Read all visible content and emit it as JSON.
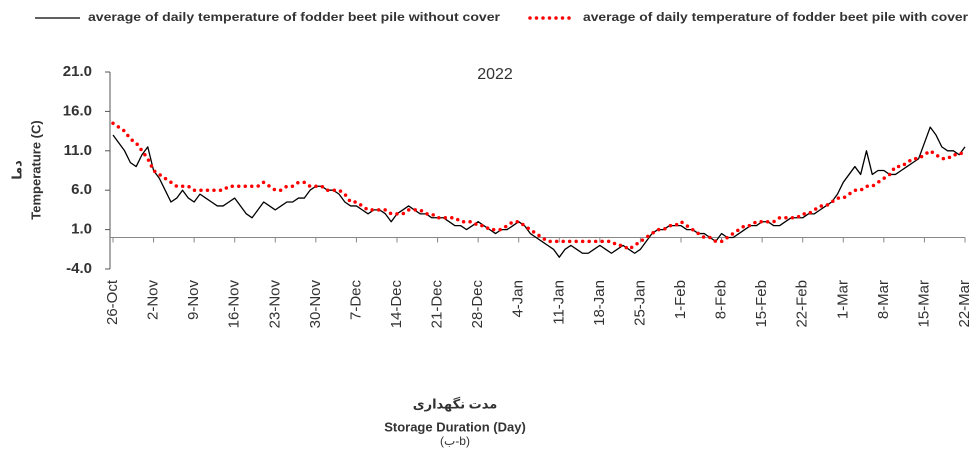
{
  "chart_data": {
    "type": "line",
    "title": "2022",
    "y_label": "Temperature (C)",
    "y_label_fa": "دما",
    "x_label_fa": "مدت نگهداری",
    "x_label": "Storage Duration (Day)",
    "caption": "(ب-b)",
    "legend": "top",
    "categories": [
      "26-Oct",
      null,
      null,
      null,
      null,
      null,
      null,
      "2-Nov",
      null,
      null,
      null,
      null,
      null,
      null,
      "9-Nov",
      null,
      null,
      null,
      null,
      null,
      null,
      "16-Nov",
      null,
      null,
      null,
      null,
      null,
      null,
      "23-Nov",
      null,
      null,
      null,
      null,
      null,
      null,
      "30-Nov",
      null,
      null,
      null,
      null,
      null,
      null,
      "7-Dec",
      null,
      null,
      null,
      null,
      null,
      null,
      "14-Dec",
      null,
      null,
      null,
      null,
      null,
      null,
      "21-Dec",
      null,
      null,
      null,
      null,
      null,
      null,
      "28-Dec",
      null,
      null,
      null,
      null,
      null,
      null,
      "4-Jan",
      null,
      null,
      null,
      null,
      null,
      null,
      "11-Jan",
      null,
      null,
      null,
      null,
      null,
      null,
      "18-Jan",
      null,
      null,
      null,
      null,
      null,
      null,
      "25-Jan",
      null,
      null,
      null,
      null,
      null,
      null,
      "1-Feb",
      null,
      null,
      null,
      null,
      null,
      null,
      "8-Feb",
      null,
      null,
      null,
      null,
      null,
      null,
      "15-Feb",
      null,
      null,
      null,
      null,
      null,
      null,
      "22-Feb",
      null,
      null,
      null,
      null,
      null,
      null,
      "1-Mar",
      null,
      null,
      null,
      null,
      null,
      null,
      "8-Mar",
      null,
      null,
      null,
      null,
      null,
      null,
      "15-Mar",
      null,
      null,
      null,
      null,
      null,
      null,
      "22-Mar"
    ],
    "series": [
      {
        "name": "average of daily temperature of fodder beet pile without cover",
        "color": "#000000",
        "style": "solid",
        "values": [
          13,
          12,
          11,
          9.5,
          9,
          10.5,
          11.5,
          8.5,
          7.5,
          6,
          4.5,
          5,
          6,
          5,
          4.5,
          5.5,
          5,
          4.5,
          4,
          4,
          4.5,
          5,
          4,
          3,
          2.5,
          3.5,
          4.5,
          4,
          3.5,
          4,
          4.5,
          4.5,
          5,
          5,
          6,
          6.5,
          6.5,
          6,
          6,
          5.5,
          4.5,
          4,
          4,
          3.5,
          3,
          3.5,
          3.5,
          3,
          2,
          3,
          3.5,
          4,
          3.5,
          3,
          3,
          2.5,
          2.5,
          2.5,
          2,
          1.5,
          1.5,
          1,
          1.5,
          2,
          1.5,
          1,
          0.5,
          1,
          1,
          1.5,
          2,
          1.5,
          0.5,
          0,
          -0.5,
          -1,
          -1.5,
          -2.5,
          -1.5,
          -1,
          -1.5,
          -2,
          -2,
          -1.5,
          -1,
          -1.5,
          -2,
          -1.5,
          -1,
          -1.5,
          -2,
          -1.5,
          -0.5,
          0.5,
          1,
          1,
          1.5,
          1.5,
          1.5,
          1,
          1,
          0.5,
          0.5,
          0,
          -0.5,
          0.5,
          0,
          0,
          0.5,
          1,
          1.5,
          1.5,
          2,
          2,
          1.5,
          1.5,
          2,
          2.5,
          2.5,
          2.5,
          3,
          3,
          3.5,
          4,
          4.5,
          5.5,
          7,
          8,
          9,
          8,
          11,
          8,
          8.5,
          8.5,
          8,
          8,
          8.5,
          9,
          9.5,
          10,
          12,
          14,
          13,
          11.5,
          11,
          11,
          10.5,
          11.5
        ]
      },
      {
        "name": "average of daily temperature of fodder beet pile with cover",
        "color": "#ff0000",
        "style": "dotted",
        "values": [
          14.5,
          14,
          13.5,
          12.5,
          12,
          11,
          10,
          8.5,
          8,
          7.5,
          7,
          6.5,
          6.5,
          6.5,
          6,
          6,
          6,
          6,
          6,
          6,
          6.5,
          6.5,
          6.5,
          6.5,
          6.5,
          6.5,
          7,
          6.5,
          6,
          6,
          6.5,
          6.5,
          7,
          7,
          6.5,
          6.5,
          6.5,
          6,
          6,
          6,
          5.5,
          4.5,
          4.5,
          4,
          3.5,
          3.5,
          3.5,
          3.5,
          3,
          3,
          3,
          3.5,
          3.5,
          3.5,
          3,
          3,
          2.5,
          2.5,
          2.5,
          2.5,
          2,
          2,
          2,
          1.5,
          1.5,
          1,
          1,
          1,
          1.5,
          2,
          2,
          1.5,
          1,
          0.5,
          0,
          -0.5,
          -0.5,
          -0.5,
          -0.5,
          -0.5,
          -0.5,
          -0.5,
          -0.5,
          -0.5,
          -0.5,
          -0.5,
          -0.5,
          -1,
          -1,
          -1.5,
          -1,
          -0.5,
          0,
          0.5,
          1,
          1,
          1.5,
          1.5,
          2,
          1.5,
          1,
          0.5,
          0,
          0,
          -0.5,
          -0.5,
          0,
          0.5,
          1,
          1.5,
          1.5,
          2,
          2,
          2,
          2,
          2.5,
          2.5,
          2.5,
          2.5,
          3,
          3,
          3.5,
          4,
          4,
          4.5,
          5,
          5,
          5.5,
          6,
          6,
          6.5,
          6.5,
          7,
          7.5,
          8,
          9,
          9,
          9.5,
          10,
          10,
          10.5,
          11,
          10.5,
          10,
          10,
          10.5,
          10.5,
          11
        ]
      }
    ],
    "ylim": [
      -4,
      21
    ],
    "yticks": [
      {
        "value": -4,
        "label": "-4.0"
      },
      {
        "value": 1,
        "label": "1.0"
      },
      {
        "value": 6,
        "label": "6.0"
      },
      {
        "value": 11,
        "label": "11.0"
      },
      {
        "value": 16,
        "label": "16.0"
      },
      {
        "value": 21,
        "label": "21.0"
      }
    ],
    "grid": false
  }
}
